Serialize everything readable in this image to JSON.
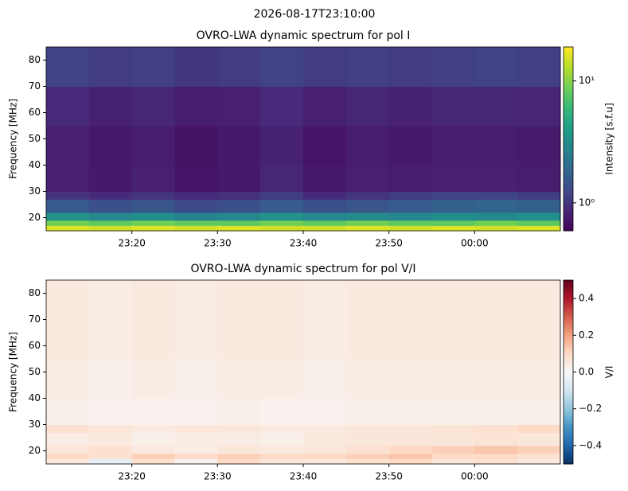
{
  "title": "2026-08-17T23:10:00",
  "chart_data": [
    {
      "type": "heatmap",
      "title": "OVRO-LWA dynamic spectrum for pol I",
      "ylabel": "Frequency [MHz]",
      "colorbar_label": "Intensity [s.f.u]",
      "colormap": "viridis",
      "color_scale": "log",
      "x": [
        "23:10",
        "23:15",
        "23:20",
        "23:25",
        "23:30",
        "23:35",
        "23:40",
        "23:45",
        "23:50",
        "23:55",
        "00:00",
        "00:05",
        "00:10"
      ],
      "y": [
        15,
        17,
        19,
        22,
        27,
        30,
        40,
        55,
        70,
        85
      ],
      "values": [
        [
          16,
          15,
          16,
          15,
          16,
          15,
          15,
          16,
          15,
          16,
          15,
          16
        ],
        [
          9,
          8,
          9,
          8,
          8,
          9,
          8,
          9,
          8,
          8,
          9,
          8
        ],
        [
          3.5,
          3,
          3.2,
          2.8,
          3,
          3.4,
          3,
          3.1,
          2.9,
          3.2,
          3,
          3.3
        ],
        [
          1.6,
          1.4,
          1.5,
          1.3,
          1.4,
          1.6,
          1.4,
          1.5,
          1.6,
          1.7,
          1.8,
          1.7
        ],
        [
          1.0,
          0.9,
          1.0,
          0.9,
          0.95,
          1.1,
          0.9,
          1.0,
          1.1,
          1.2,
          1.2,
          1.1
        ],
        [
          0.8,
          0.75,
          0.8,
          0.72,
          0.75,
          0.85,
          0.75,
          0.8,
          0.78,
          0.8,
          0.8,
          0.78
        ],
        [
          0.8,
          0.74,
          0.78,
          0.7,
          0.74,
          0.82,
          0.72,
          0.78,
          0.75,
          0.78,
          0.78,
          0.76
        ],
        [
          0.9,
          0.82,
          0.86,
          0.78,
          0.8,
          0.9,
          0.8,
          0.85,
          0.82,
          0.85,
          0.85,
          0.84
        ],
        [
          1.2,
          1.1,
          1.15,
          1.05,
          1.1,
          1.2,
          1.1,
          1.15,
          1.1,
          1.15,
          1.2,
          1.15
        ]
      ],
      "xlim": [
        "23:10",
        "00:10"
      ],
      "xticks": [
        "23:20",
        "23:30",
        "23:40",
        "23:50",
        "00:00"
      ],
      "ylim": [
        15,
        85
      ],
      "yticks": [
        20,
        30,
        40,
        50,
        60,
        70,
        80
      ],
      "clim": [
        0.59,
        19
      ],
      "cticks": [
        {
          "value": 1,
          "label": "10⁰"
        },
        {
          "value": 10,
          "label": "10¹"
        }
      ]
    },
    {
      "type": "heatmap",
      "title": "OVRO-LWA dynamic spectrum for pol V/I",
      "ylabel": "Frequency [MHz]",
      "colorbar_label": "V/I",
      "colormap": "RdBu_r",
      "color_scale": "linear",
      "x": [
        "23:10",
        "23:15",
        "23:20",
        "23:25",
        "23:30",
        "23:35",
        "23:40",
        "23:45",
        "23:50",
        "23:55",
        "00:00",
        "00:05",
        "00:10"
      ],
      "y": [
        15,
        17,
        19,
        22,
        27,
        30,
        40,
        55,
        70,
        85
      ],
      "values": [
        [
          0.05,
          -0.05,
          0.08,
          0.02,
          0.1,
          0.06,
          0.05,
          0.08,
          0.1,
          0.06,
          0.08,
          0.05
        ],
        [
          0.1,
          0.08,
          0.12,
          0.1,
          0.12,
          0.1,
          0.1,
          0.12,
          0.14,
          0.1,
          0.1,
          0.08
        ],
        [
          0.06,
          0.08,
          0.05,
          0.04,
          0.06,
          0.05,
          0.06,
          0.08,
          0.1,
          0.12,
          0.14,
          0.12
        ],
        [
          0.04,
          0.05,
          0.03,
          0.04,
          0.04,
          0.03,
          0.05,
          0.06,
          0.06,
          0.06,
          0.07,
          0.06
        ],
        [
          0.08,
          0.06,
          0.05,
          0.06,
          0.06,
          0.05,
          0.05,
          0.06,
          0.06,
          0.07,
          0.08,
          0.1
        ],
        [
          0.03,
          0.02,
          0.02,
          0.02,
          0.03,
          0.02,
          0.02,
          0.03,
          0.03,
          0.03,
          0.03,
          0.03
        ],
        [
          0.04,
          0.03,
          0.04,
          0.03,
          0.04,
          0.04,
          0.03,
          0.04,
          0.04,
          0.04,
          0.04,
          0.04
        ],
        [
          0.05,
          0.04,
          0.05,
          0.04,
          0.05,
          0.05,
          0.04,
          0.05,
          0.05,
          0.05,
          0.05,
          0.05
        ],
        [
          0.05,
          0.04,
          0.05,
          0.04,
          0.05,
          0.05,
          0.04,
          0.05,
          0.05,
          0.05,
          0.05,
          0.05
        ]
      ],
      "xlim": [
        "23:10",
        "00:10"
      ],
      "xticks": [
        "23:20",
        "23:30",
        "23:40",
        "23:50",
        "00:00"
      ],
      "ylim": [
        15,
        85
      ],
      "yticks": [
        20,
        30,
        40,
        50,
        60,
        70,
        80
      ],
      "clim": [
        -0.5,
        0.5
      ],
      "cticks": [
        {
          "value": -0.4,
          "label": "−0.4"
        },
        {
          "value": -0.2,
          "label": "−0.2"
        },
        {
          "value": 0,
          "label": "0.0"
        },
        0.2,
        0.4
      ]
    }
  ]
}
